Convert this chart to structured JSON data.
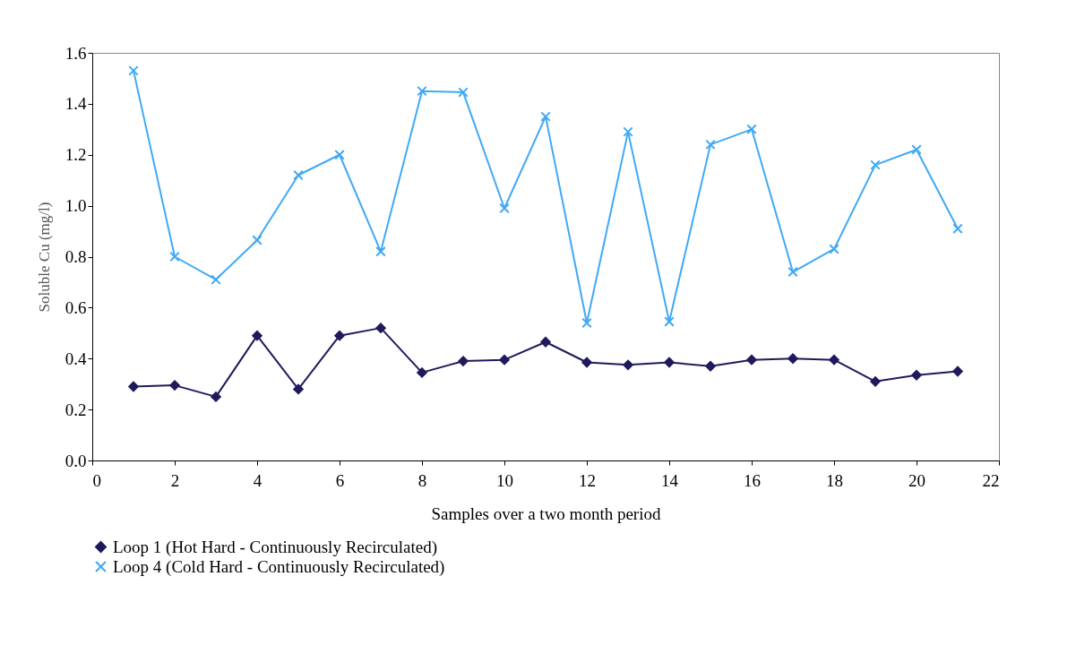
{
  "chart_data": {
    "type": "line",
    "xlabel": "Samples over a two month period",
    "ylabel": "Soluble Cu (mg/l)",
    "x": [
      1,
      2,
      3,
      4,
      5,
      6,
      7,
      8,
      9,
      10,
      11,
      12,
      13,
      14,
      15,
      16,
      17,
      18,
      19,
      20,
      21
    ],
    "xlim": [
      0,
      22
    ],
    "xticks": [
      0,
      2,
      4,
      6,
      8,
      10,
      12,
      14,
      16,
      18,
      20,
      22
    ],
    "ylim": [
      0,
      1.6
    ],
    "yticks": [
      {
        "value": 0,
        "label": "0.0"
      },
      0.2,
      0.4,
      0.6,
      0.8,
      {
        "value": 1,
        "label": "1.0"
      },
      1.2,
      1.4,
      1.6
    ],
    "grid": false,
    "legend": "bottom",
    "series": [
      {
        "name": "Loop 1 (Hot Hard - Continuously Recirculated)",
        "color": "#1f1a5c",
        "marker": "diamond",
        "values": [
          0.29,
          0.295,
          0.25,
          0.49,
          0.28,
          0.49,
          0.52,
          0.345,
          0.39,
          0.395,
          0.465,
          0.385,
          0.375,
          0.385,
          0.37,
          0.395,
          0.4,
          0.395,
          0.31,
          0.335,
          0.35
        ]
      },
      {
        "name": "Loop 4 (Cold Hard - Continuously Recirculated)",
        "color": "#3fa9f5",
        "marker": "cross",
        "values": [
          1.53,
          0.8,
          0.71,
          0.865,
          1.12,
          1.2,
          0.82,
          1.45,
          1.445,
          0.99,
          1.35,
          0.54,
          1.29,
          0.545,
          1.24,
          1.3,
          0.74,
          0.83,
          1.16,
          1.22,
          0.91
        ]
      }
    ]
  }
}
